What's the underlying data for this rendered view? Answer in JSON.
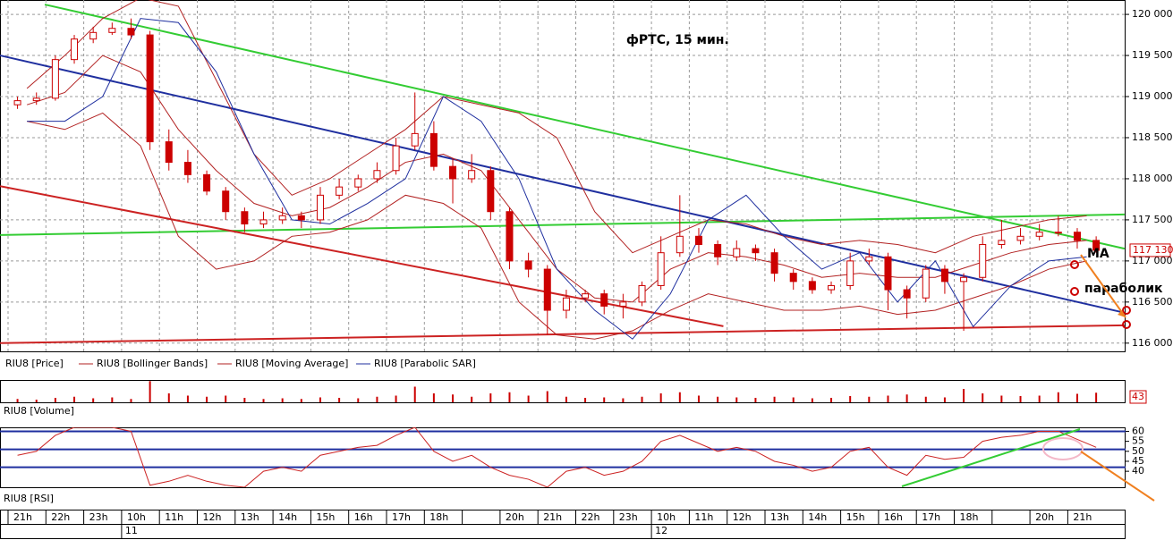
{
  "chart_data": [
    {
      "type": "candlestick",
      "title": "фРТС, 15 мин.",
      "price_name": "RIU8 [Price]",
      "color": "#cc0000",
      "categories": [
        "21h",
        "22h",
        "23h",
        "10h",
        "11h",
        "12h",
        "13h",
        "14h",
        "15h",
        "16h",
        "17h",
        "18h",
        null,
        "20h",
        "21h",
        "22h",
        "23h",
        "10h",
        "11h",
        "12h",
        "13h",
        "14h",
        "15h",
        "16h",
        "17h",
        "18h",
        null,
        "20h",
        "21h"
      ],
      "days": [
        null,
        null,
        null,
        "11",
        null,
        null,
        null,
        null,
        null,
        null,
        null,
        null,
        null,
        null,
        null,
        null,
        null,
        "12",
        null,
        null,
        null,
        null,
        null,
        null,
        null,
        null,
        null,
        null,
        null
      ],
      "open": [
        118900,
        118950,
        118980,
        119450,
        119700,
        119780,
        119830,
        119750,
        118450,
        118200,
        118050,
        117850,
        117600,
        117450,
        117500,
        117550,
        117500,
        117800,
        117900,
        118000,
        118100,
        118400,
        118550,
        118150,
        118000,
        118100,
        117600,
        117000,
        116900,
        116400,
        116550,
        116600,
        116450,
        116500,
        116700,
        117100,
        117300,
        117200,
        117050,
        117150,
        117100,
        116850,
        116750,
        116650,
        116700,
        117000,
        117050,
        116650,
        116550,
        116900,
        116750,
        116800,
        117200,
        117250,
        117300,
        117350,
        117350,
        117250
      ],
      "high": [
        119000,
        119050,
        119500,
        119750,
        119850,
        119900,
        119950,
        119800,
        118600,
        118350,
        118100,
        117900,
        117650,
        117600,
        117650,
        117600,
        117900,
        118000,
        118050,
        118200,
        118500,
        119050,
        118700,
        118250,
        118300,
        118150,
        117650,
        117100,
        116950,
        116650,
        116650,
        116650,
        116600,
        116750,
        117300,
        117800,
        117400,
        117250,
        117250,
        117200,
        117150,
        116900,
        116800,
        116750,
        117100,
        117150,
        117100,
        116700,
        116950,
        116950,
        116850,
        117300,
        117500,
        117400,
        117450,
        117550,
        117400,
        117300
      ],
      "low": [
        118850,
        118900,
        118950,
        119400,
        119650,
        119750,
        119700,
        118350,
        118100,
        117950,
        117800,
        117500,
        117350,
        117400,
        117450,
        117400,
        117450,
        117750,
        117850,
        117950,
        118050,
        118350,
        118100,
        117700,
        117950,
        117500,
        116900,
        116800,
        116100,
        116300,
        116500,
        116350,
        116300,
        116450,
        116650,
        117050,
        117100,
        116950,
        117000,
        117000,
        116750,
        116650,
        116600,
        116600,
        116650,
        116950,
        116400,
        116300,
        116500,
        116600,
        116150,
        116750,
        117150,
        117200,
        117250,
        117300,
        117150,
        117100
      ],
      "close": [
        118950,
        118980,
        119450,
        119700,
        119780,
        119830,
        119750,
        118450,
        118200,
        118050,
        117850,
        117600,
        117450,
        117500,
        117550,
        117500,
        117800,
        117900,
        118000,
        118100,
        118400,
        118550,
        118150,
        118000,
        118100,
        117600,
        117000,
        116900,
        116400,
        116550,
        116600,
        116450,
        116500,
        116700,
        117100,
        117300,
        117200,
        117050,
        117150,
        117100,
        116850,
        116750,
        116650,
        116700,
        117000,
        117050,
        116650,
        116550,
        116900,
        116750,
        116800,
        117200,
        117250,
        117300,
        117350,
        117350,
        117250,
        117130
      ],
      "price_label": {
        "value": 117130,
        "label": "117 130"
      },
      "series": [
        {
          "name": "RIU8 [Bollinger Bands]",
          "color": "#b22222",
          "upper": [
            119100,
            119500,
            119950,
            120200,
            120100,
            119200,
            118300,
            117800,
            118000,
            118300,
            118600,
            119000,
            118900,
            118800,
            118500,
            117600,
            117100,
            117300,
            117500,
            117450,
            117300,
            117200,
            117250,
            117200,
            117100,
            117300,
            117400,
            117500,
            117550
          ],
          "lower": [
            118700,
            118600,
            118800,
            118400,
            117300,
            116900,
            117000,
            117300,
            117350,
            117500,
            117800,
            117700,
            117400,
            116500,
            116100,
            116050,
            116150,
            116400,
            116600,
            116500,
            116400,
            116400,
            116450,
            116350,
            116400,
            116550,
            116700,
            116900,
            117000
          ]
        },
        {
          "name": "RIU8 [Moving Average]",
          "color": "#b22222",
          "values": [
            118900,
            119050,
            119500,
            119300,
            118600,
            118100,
            117700,
            117550,
            117650,
            117900,
            118200,
            118300,
            118100,
            117500,
            116900,
            116550,
            116500,
            116900,
            117100,
            117050,
            116950,
            116800,
            116850,
            116800,
            116800,
            116950,
            117100,
            117200,
            117250
          ]
        },
        {
          "name": "RIU8 [Parabolic SAR]",
          "color": "#1f2f9f",
          "values": [
            118700,
            118700,
            119000,
            119950,
            119900,
            119300,
            118300,
            117500,
            117450,
            117700,
            118000,
            119000,
            118700,
            118000,
            116900,
            116400,
            116050,
            116600,
            117500,
            117800,
            117300,
            116900,
            117100,
            116500,
            117000,
            116200,
            116700,
            117000,
            117050
          ]
        }
      ],
      "trendlines": [
        {
          "color": "#33cc33",
          "x": [
            0.97,
            29.5
          ],
          "y": [
            120120,
            117150
          ]
        },
        {
          "color": "#33cc33",
          "x": [
            -0.21,
            29.5
          ],
          "y": [
            117315,
            117565
          ]
        },
        {
          "color": "#1f2f9f",
          "x": [
            -0.21,
            29.5
          ],
          "y": [
            119500,
            116370
          ]
        },
        {
          "color": "#cc2222",
          "x": [
            -0.21,
            18.9
          ],
          "y": [
            117910,
            116206
          ]
        },
        {
          "color": "#cc2222",
          "x": [
            -0.21,
            29.5
          ],
          "y": [
            116000,
            116217
          ]
        }
      ],
      "annotations": [
        "MA",
        "параболик"
      ],
      "ylim": [
        115900,
        120175
      ],
      "yticks": [
        {
          "value": 116000,
          "label": "116 000"
        },
        {
          "value": 116500,
          "label": "116 500"
        },
        {
          "value": 117000,
          "label": "117 000"
        },
        {
          "value": 117500,
          "label": "117 500"
        },
        {
          "value": 118000,
          "label": "118 000"
        },
        {
          "value": 118500,
          "label": "118 500"
        },
        {
          "value": 119000,
          "label": "119 000"
        },
        {
          "value": 119500,
          "label": "119 500"
        },
        {
          "value": 120000,
          "label": "120 000"
        }
      ],
      "grid": true
    },
    {
      "type": "bar",
      "name": "RIU8 [Volume]",
      "color": "#cc0000",
      "values": [
        15,
        12,
        20,
        25,
        18,
        22,
        15,
        95,
        40,
        30,
        25,
        30,
        20,
        15,
        18,
        15,
        22,
        20,
        18,
        25,
        30,
        70,
        40,
        35,
        25,
        40,
        45,
        30,
        50,
        25,
        20,
        22,
        18,
        25,
        40,
        45,
        30,
        25,
        22,
        20,
        25,
        22,
        18,
        20,
        28,
        25,
        30,
        35,
        25,
        22,
        60,
        40,
        30,
        28,
        30,
        45,
        38,
        43
      ],
      "ylim": [
        0,
        100
      ]
    },
    {
      "type": "line",
      "name": "RIU8 [RSI]",
      "color": "#cc2222",
      "level_color": "#1f2f9f",
      "values": [
        48,
        50,
        58,
        62,
        62,
        62,
        60,
        33,
        35,
        38,
        35,
        33,
        32,
        40,
        42,
        40,
        48,
        50,
        52,
        53,
        58,
        62,
        50,
        45,
        48,
        42,
        38,
        36,
        32,
        40,
        42,
        38,
        40,
        45,
        55,
        58,
        54,
        50,
        52,
        50,
        45,
        43,
        40,
        42,
        50,
        52,
        42,
        38,
        48,
        46,
        47,
        55,
        57,
        58,
        60,
        60,
        56,
        52
      ],
      "levels": [
        60,
        51,
        42
      ],
      "ylim": [
        32,
        62
      ],
      "yticks": [
        60,
        55,
        50,
        45,
        40
      ]
    }
  ]
}
